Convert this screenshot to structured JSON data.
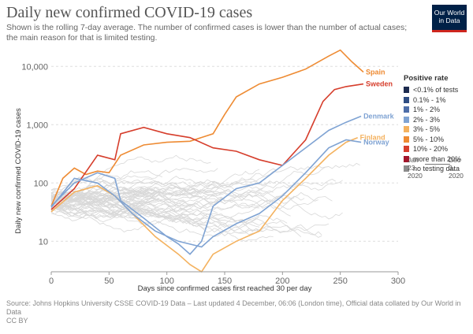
{
  "header": {
    "title": "Daily new confirmed COVID-19 cases",
    "subtitle": "Shown is the rolling 7-day average. The number of confirmed cases is lower than the number of actual cases; the main reason for that is limited testing.",
    "logo_line1": "Our World",
    "logo_line2": "in Data"
  },
  "legend": {
    "title": "Positive rate",
    "items": [
      {
        "label": "<0.1% of tests",
        "color": "#1d2b4f"
      },
      {
        "label": "0.1% - 1%",
        "color": "#2f4d82"
      },
      {
        "label": "1% - 2%",
        "color": "#4e6ea8"
      },
      {
        "label": "2% - 3%",
        "color": "#7fa3d3"
      },
      {
        "label": "3% - 5%",
        "color": "#f4b25f"
      },
      {
        "label": "5% - 10%",
        "color": "#ee8b33"
      },
      {
        "label": "10% - 20%",
        "color": "#d63e2c"
      },
      {
        "label": "more than 20%",
        "color": "#a3152a"
      },
      {
        "label": "no testing data",
        "color": "#8c8c8c"
      }
    ]
  },
  "time_range": {
    "start_line1": "Jan",
    "start_line2": "23,",
    "start_line3": "2020",
    "end_line1": "Dec",
    "end_line2": "3,",
    "end_line3": "2020"
  },
  "footer": {
    "source": "Source: Johns Hopkins University CSSE COVID-19 Data – Last updated 4 December, 06:06 (London time), Official data collated by Our World in Data",
    "license": "CC BY"
  },
  "chart_data": {
    "type": "line",
    "xlabel": "Days since confirmed cases first reached 30 per day",
    "ylabel": "Daily new confirmed COVID-19 cases",
    "xlim": [
      0,
      300
    ],
    "ylim": [
      3,
      20000
    ],
    "yscale": "log",
    "xticks": [
      0,
      50,
      100,
      150,
      200,
      250,
      300
    ],
    "yticks": [
      10,
      100,
      1000,
      10000
    ],
    "ytick_labels": [
      "10",
      "100",
      "1,000",
      "10,000"
    ],
    "grid": true,
    "series": [
      {
        "name": "Spain",
        "color": "#ee8b33",
        "points": [
          [
            0,
            40
          ],
          [
            10,
            120
          ],
          [
            20,
            180
          ],
          [
            30,
            140
          ],
          [
            40,
            160
          ],
          [
            50,
            150
          ],
          [
            60,
            300
          ],
          [
            80,
            450
          ],
          [
            100,
            500
          ],
          [
            120,
            520
          ],
          [
            140,
            700
          ],
          [
            150,
            1500
          ],
          [
            160,
            3000
          ],
          [
            180,
            5000
          ],
          [
            200,
            6500
          ],
          [
            220,
            9000
          ],
          [
            240,
            15000
          ],
          [
            250,
            19000
          ],
          [
            260,
            12000
          ],
          [
            270,
            8000
          ]
        ]
      },
      {
        "name": "Sweden",
        "color": "#d63e2c",
        "points": [
          [
            0,
            35
          ],
          [
            20,
            80
          ],
          [
            40,
            300
          ],
          [
            55,
            250
          ],
          [
            60,
            700
          ],
          [
            80,
            900
          ],
          [
            100,
            700
          ],
          [
            120,
            600
          ],
          [
            140,
            400
          ],
          [
            160,
            350
          ],
          [
            180,
            250
          ],
          [
            200,
            200
          ],
          [
            220,
            550
          ],
          [
            235,
            2500
          ],
          [
            245,
            4000
          ],
          [
            255,
            4500
          ],
          [
            270,
            5000
          ]
        ]
      },
      {
        "name": "Denmark",
        "color": "#7fa3d3",
        "points": [
          [
            0,
            40
          ],
          [
            20,
            100
          ],
          [
            40,
            150
          ],
          [
            55,
            120
          ],
          [
            60,
            50
          ],
          [
            80,
            25
          ],
          [
            100,
            12
          ],
          [
            110,
            9
          ],
          [
            120,
            6
          ],
          [
            130,
            10
          ],
          [
            140,
            40
          ],
          [
            160,
            80
          ],
          [
            180,
            100
          ],
          [
            200,
            200
          ],
          [
            220,
            400
          ],
          [
            240,
            800
          ],
          [
            255,
            1100
          ],
          [
            268,
            1400
          ]
        ]
      },
      {
        "name": "Finland",
        "color": "#f4b25f",
        "points": [
          [
            0,
            32
          ],
          [
            20,
            70
          ],
          [
            40,
            90
          ],
          [
            55,
            60
          ],
          [
            70,
            30
          ],
          [
            90,
            12
          ],
          [
            110,
            6
          ],
          [
            120,
            4
          ],
          [
            130,
            3
          ],
          [
            140,
            6
          ],
          [
            160,
            10
          ],
          [
            180,
            15
          ],
          [
            200,
            50
          ],
          [
            220,
            120
          ],
          [
            240,
            300
          ],
          [
            255,
            500
          ],
          [
            265,
            600
          ]
        ]
      },
      {
        "name": "Norway",
        "color": "#7fa3d3",
        "points": [
          [
            0,
            38
          ],
          [
            20,
            120
          ],
          [
            40,
            100
          ],
          [
            55,
            60
          ],
          [
            70,
            30
          ],
          [
            90,
            15
          ],
          [
            110,
            10
          ],
          [
            130,
            8
          ],
          [
            140,
            12
          ],
          [
            160,
            20
          ],
          [
            180,
            30
          ],
          [
            200,
            60
          ],
          [
            220,
            150
          ],
          [
            240,
            400
          ],
          [
            255,
            550
          ],
          [
            268,
            500
          ]
        ]
      }
    ]
  }
}
